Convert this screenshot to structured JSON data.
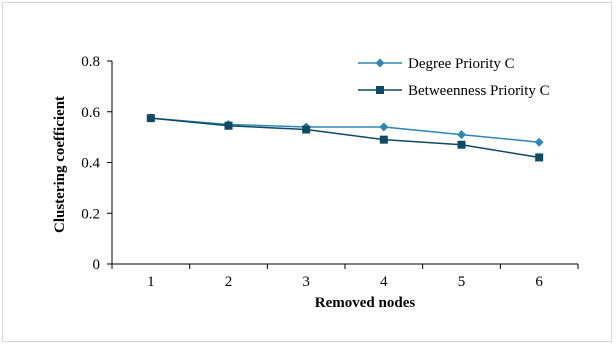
{
  "chart_data": {
    "type": "line",
    "title": "",
    "xlabel": "Removed nodes",
    "ylabel": "Clustering coefficient",
    "x": [
      1,
      2,
      3,
      4,
      5,
      6
    ],
    "xlim": [
      0.5,
      6.5
    ],
    "ylim": [
      0,
      0.8
    ],
    "yticks": [
      0,
      0.2,
      0.4,
      0.6,
      0.8
    ],
    "ytick_labels": [
      "0",
      "0.2",
      "0.4",
      "0.6",
      "0.8"
    ],
    "xtick_labels": [
      "1",
      "2",
      "3",
      "4",
      "5",
      "6"
    ],
    "grid": false,
    "legend_position": "top-right",
    "series": [
      {
        "name": "Degree Priority C",
        "marker": "diamond",
        "color": "#2e86b8",
        "values": [
          0.575,
          0.55,
          0.54,
          0.54,
          0.51,
          0.48
        ]
      },
      {
        "name": "Betweenness Priority C",
        "marker": "square",
        "color": "#0d4a63",
        "values": [
          0.575,
          0.545,
          0.53,
          0.49,
          0.47,
          0.42
        ]
      }
    ]
  }
}
